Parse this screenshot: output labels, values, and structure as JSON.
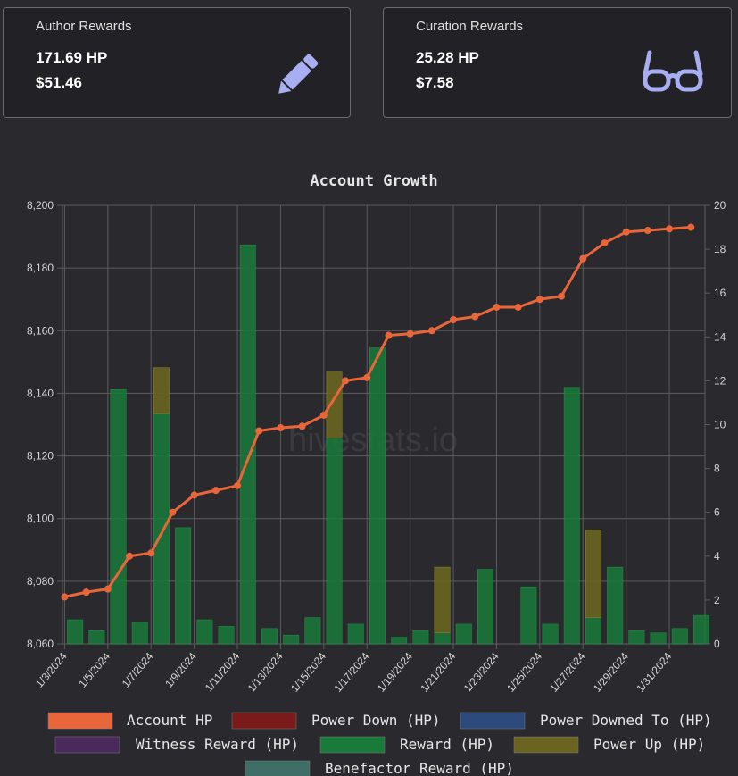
{
  "cards": {
    "author": {
      "title": "Author Rewards",
      "hp": "171.69 HP",
      "usd": "$51.46",
      "icon": "pencil-icon"
    },
    "curation": {
      "title": "Curation Rewards",
      "hp": "25.28 HP",
      "usd": "$7.58",
      "icon": "glasses-icon"
    }
  },
  "colors": {
    "icon": "#a7aff2",
    "account_hp": "#e8663a",
    "power_down": "#7a1a1a",
    "power_downed_to": "#2c4a7c",
    "witness_reward": "#4a2a5c",
    "reward": "#1a7a3a",
    "power_up": "#6a6420",
    "benefactor_reward": "#3e6e66"
  },
  "watermark": "hivestats.io",
  "chart_data": {
    "type": "bar",
    "title": "Account Growth",
    "categories": [
      "1/3/2024",
      "1/4/2024",
      "1/5/2024",
      "1/6/2024",
      "1/7/2024",
      "1/8/2024",
      "1/9/2024",
      "1/10/2024",
      "1/11/2024",
      "1/12/2024",
      "1/13/2024",
      "1/14/2024",
      "1/15/2024",
      "1/16/2024",
      "1/17/2024",
      "1/18/2024",
      "1/19/2024",
      "1/20/2024",
      "1/21/2024",
      "1/22/2024",
      "1/23/2024",
      "1/24/2024",
      "1/25/2024",
      "1/26/2024",
      "1/27/2024",
      "1/28/2024",
      "1/29/2024",
      "1/30/2024",
      "1/31/2024",
      "2/1/2024"
    ],
    "x_tick_labels": [
      "1/3/2024",
      "1/5/2024",
      "1/7/2024",
      "1/9/2024",
      "1/11/2024",
      "1/13/2024",
      "1/15/2024",
      "1/17/2024",
      "1/19/2024",
      "1/21/2024",
      "1/23/2024",
      "1/25/2024",
      "1/27/2024",
      "1/29/2024",
      "1/31/2024"
    ],
    "y_left": {
      "min": 8060,
      "max": 8200,
      "step": 20,
      "ticks": [
        "8,060",
        "8,080",
        "8,100",
        "8,120",
        "8,140",
        "8,160",
        "8,180",
        "8,200"
      ]
    },
    "y_right": {
      "min": 0,
      "max": 20,
      "step": 2,
      "ticks": [
        "0",
        "2",
        "4",
        "6",
        "8",
        "10",
        "12",
        "14",
        "16",
        "18",
        "20"
      ]
    },
    "grid": true,
    "legend_position": "bottom",
    "series": [
      {
        "name": "Account HP",
        "axis": "left",
        "kind": "line",
        "values": [
          8075,
          8076.5,
          8077.5,
          8088,
          8089,
          8102,
          8107.5,
          8109,
          8110.5,
          8128,
          8129,
          8129.5,
          8133,
          8144,
          8145,
          8158.5,
          8159,
          8160,
          8163.5,
          8164.5,
          8167.5,
          8167.5,
          8170,
          8171,
          8183,
          8188,
          8191.5,
          8192,
          8192.5,
          8193
        ]
      },
      {
        "name": "Power Down (HP)",
        "axis": "right",
        "kind": "bar",
        "values": [
          0,
          0,
          0,
          0,
          0,
          0,
          0,
          0,
          0,
          0,
          0,
          0,
          0,
          0,
          0,
          0,
          0,
          0,
          0,
          0,
          0,
          0,
          0,
          0,
          0,
          0,
          0,
          0,
          0,
          0
        ]
      },
      {
        "name": "Power Downed To (HP)",
        "axis": "right",
        "kind": "bar",
        "values": [
          0,
          0,
          0,
          0,
          0,
          0,
          0,
          0,
          0,
          0,
          0,
          0,
          0,
          0,
          0,
          0,
          0,
          0,
          0,
          0,
          0,
          0,
          0,
          0,
          0,
          0,
          0,
          0,
          0,
          0
        ]
      },
      {
        "name": "Witness Reward (HP)",
        "axis": "right",
        "kind": "bar",
        "values": [
          0,
          0,
          0,
          0,
          0,
          0,
          0,
          0,
          0,
          0,
          0,
          0,
          0,
          0,
          0,
          0,
          0,
          0,
          0,
          0,
          0,
          0,
          0,
          0,
          0,
          0,
          0,
          0,
          0,
          0
        ]
      },
      {
        "name": "Reward (HP)",
        "axis": "right",
        "kind": "bar",
        "values": [
          1.1,
          0.6,
          11.6,
          1.0,
          10.5,
          5.3,
          1.1,
          0.8,
          18.2,
          0.7,
          0.4,
          1.2,
          9.4,
          0.9,
          13.5,
          0.3,
          0.6,
          0.5,
          0.9,
          3.4,
          0,
          2.6,
          0.9,
          11.7,
          1.2,
          3.5,
          0.6,
          0.5,
          0.7,
          1.3
        ]
      },
      {
        "name": "Power Up (HP)",
        "axis": "right",
        "kind": "bar",
        "values": [
          0,
          0,
          0,
          0,
          2.1,
          0,
          0,
          0,
          0,
          0,
          0,
          0,
          3.0,
          0,
          0,
          0,
          0,
          3.0,
          0,
          0,
          0,
          0,
          0,
          0,
          4.0,
          0,
          0,
          0,
          0,
          0
        ]
      },
      {
        "name": "Benefactor Reward (HP)",
        "axis": "right",
        "kind": "bar",
        "values": [
          0,
          0,
          0,
          0,
          0,
          0,
          0,
          0,
          0,
          0,
          0,
          0,
          0,
          0,
          0,
          0,
          0,
          0,
          0,
          0,
          0,
          0,
          0,
          0,
          0,
          0,
          0,
          0,
          0,
          0
        ]
      }
    ]
  }
}
